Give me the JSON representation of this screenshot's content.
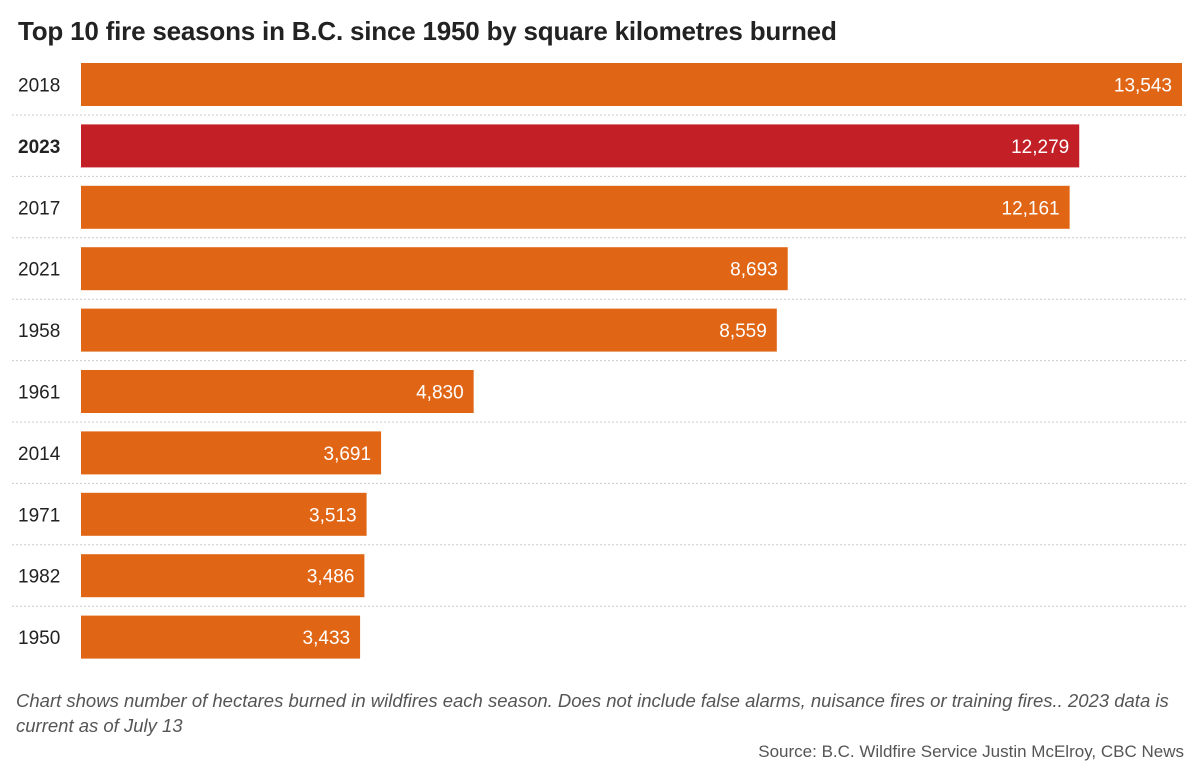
{
  "title": "Top 10 fire seasons in B.C. since 1950 by square kilometres burned",
  "note": "Chart shows number of hectares burned in wildfires each season. Does not include false alarms, nuisance fires or training fires.. 2023 data is current as of July 13",
  "source": "Source: B.C. Wildfire Service Justin McElroy, CBC News",
  "colors": {
    "bar": "#e06615",
    "highlight": "#c21f26",
    "label": "#ffffff",
    "grid": "#cccccc"
  },
  "chart_data": {
    "type": "bar",
    "orientation": "horizontal",
    "title": "Top 10 fire seasons in B.C. since 1950 by square kilometres burned",
    "categories": [
      "2018",
      "2023",
      "2017",
      "2021",
      "1958",
      "1961",
      "2014",
      "1971",
      "1982",
      "1950"
    ],
    "values": [
      13543,
      12279,
      12161,
      8693,
      8559,
      4830,
      3691,
      3513,
      3486,
      3433
    ],
    "value_labels": [
      "13,543",
      "12,279",
      "12,161",
      "8,693",
      "8,559",
      "4,830",
      "3,691",
      "3,513",
      "3,486",
      "3,433"
    ],
    "highlight": "2023",
    "xlim": [
      0,
      13543
    ],
    "grid": true,
    "legend": "none"
  }
}
